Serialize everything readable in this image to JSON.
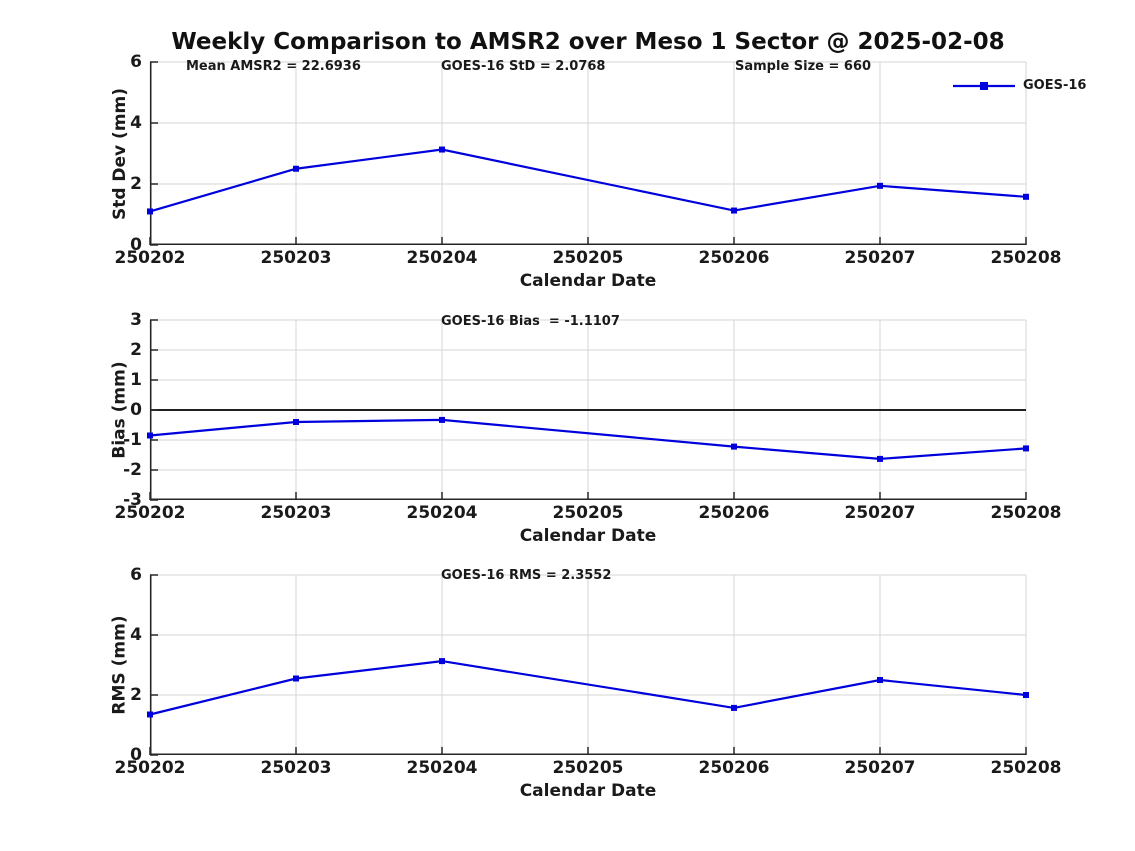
{
  "figure_title": "Weekly Comparison to AMSR2 over Meso 1 Sector @ 2025-02-08",
  "colors": {
    "line": "#0000dd",
    "grid": "#d6d6d6",
    "axis": "#262626",
    "text": "#1a1a1a",
    "zero_line": "#000000"
  },
  "legend": {
    "label": "GOES-16"
  },
  "chart_data": [
    {
      "type": "line",
      "panel": "std-dev",
      "ylabel": "Std Dev (mm)",
      "xlabel": "Calendar Date",
      "ylim": [
        0,
        6
      ],
      "yticks": [
        0,
        2,
        4,
        6
      ],
      "xlim": [
        250202,
        250208
      ],
      "xticks": [
        250202,
        250203,
        250204,
        250205,
        250206,
        250207,
        250208
      ],
      "xtick_labels": [
        "250202",
        "250203",
        "250204",
        "250205",
        "250206",
        "250207",
        "250208"
      ],
      "grid": true,
      "zero_line": false,
      "legend_position": "northeast",
      "marker": "square",
      "annotations": [
        {
          "text": "Mean AMSR2 = 22.6936"
        },
        {
          "text": "GOES-16 StD = 2.0768"
        },
        {
          "text": "Sample Size = 660"
        }
      ],
      "series": [
        {
          "name": "GOES-16",
          "x": [
            250202,
            250203,
            250204,
            250206,
            250207,
            250208
          ],
          "values": [
            1.1,
            2.5,
            3.13,
            1.13,
            1.94,
            1.58
          ]
        }
      ]
    },
    {
      "type": "line",
      "panel": "bias",
      "ylabel": "Bias (mm)",
      "xlabel": "Calendar Date",
      "ylim": [
        -3,
        3
      ],
      "yticks": [
        -3,
        -2,
        -1,
        0,
        1,
        2,
        3
      ],
      "xlim": [
        250202,
        250208
      ],
      "xticks": [
        250202,
        250203,
        250204,
        250205,
        250206,
        250207,
        250208
      ],
      "xtick_labels": [
        "250202",
        "250203",
        "250204",
        "250205",
        "250206",
        "250207",
        "250208"
      ],
      "grid": true,
      "zero_line": true,
      "marker": "square",
      "annotations": [
        {
          "text": "GOES-16 Bias  = -1.1107"
        }
      ],
      "series": [
        {
          "name": "GOES-16",
          "x": [
            250202,
            250203,
            250204,
            250206,
            250207,
            250208
          ],
          "values": [
            -0.85,
            -0.4,
            -0.33,
            -1.22,
            -1.63,
            -1.28
          ]
        }
      ]
    },
    {
      "type": "line",
      "panel": "rms",
      "ylabel": "RMS (mm)",
      "xlabel": "Calendar Date",
      "ylim": [
        0,
        6
      ],
      "yticks": [
        0,
        2,
        4,
        6
      ],
      "xlim": [
        250202,
        250208
      ],
      "xticks": [
        250202,
        250203,
        250204,
        250205,
        250206,
        250207,
        250208
      ],
      "xtick_labels": [
        "250202",
        "250203",
        "250204",
        "250205",
        "250206",
        "250207",
        "250208"
      ],
      "grid": true,
      "zero_line": false,
      "marker": "square",
      "annotations": [
        {
          "text": "GOES-16 RMS = 2.3552"
        }
      ],
      "series": [
        {
          "name": "GOES-16",
          "x": [
            250202,
            250203,
            250204,
            250206,
            250207,
            250208
          ],
          "values": [
            1.35,
            2.55,
            3.13,
            1.57,
            2.5,
            2.0
          ]
        }
      ]
    }
  ]
}
